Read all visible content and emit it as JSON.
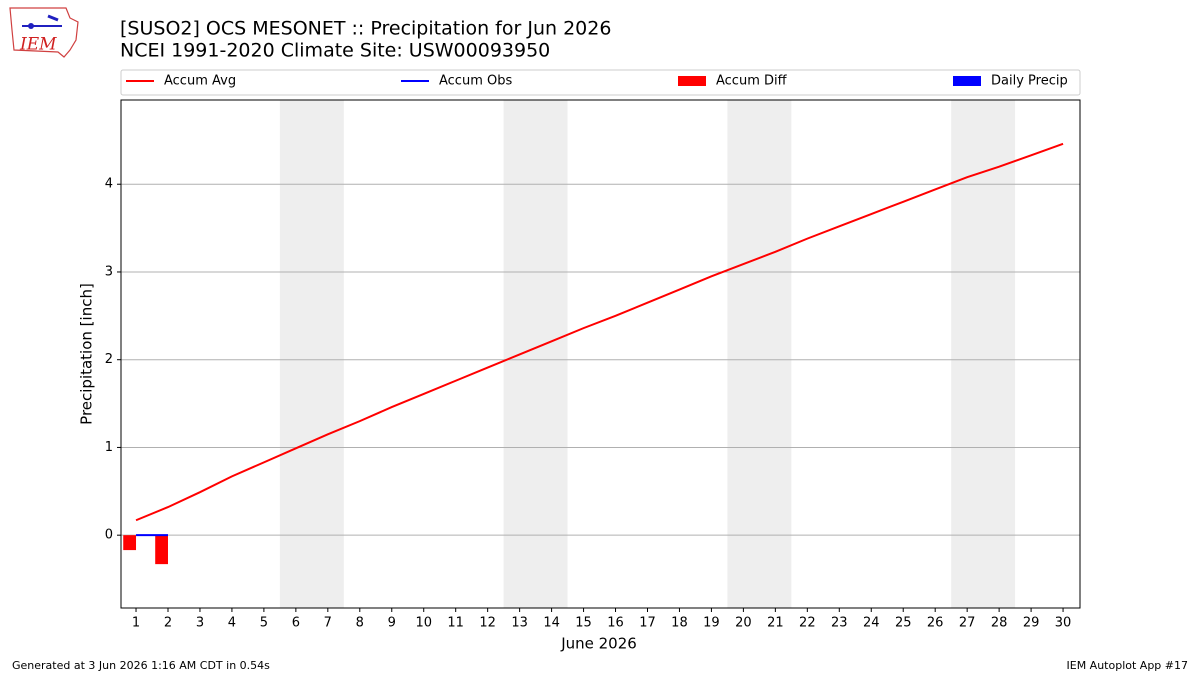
{
  "chart_data": {
    "type": "line",
    "title": "[SUSO2] OCS MESONET :: Precipitation for Jun 2026",
    "subtitle": "NCEI 1991-2020 Climate Site: USW00093950",
    "x_label": "June 2026",
    "y_label": "Precipitation [inch]",
    "logo_text": "IEM",
    "footer_left": "Generated at 3 Jun 2026 1:16 AM CDT in 0.54s",
    "footer_right": "IEM Autoplot App #17",
    "x": [
      1,
      2,
      3,
      4,
      5,
      6,
      7,
      8,
      9,
      10,
      11,
      12,
      13,
      14,
      15,
      16,
      17,
      18,
      19,
      20,
      21,
      22,
      23,
      24,
      25,
      26,
      27,
      28,
      29,
      30
    ],
    "xlim": [
      0.53,
      30.53
    ],
    "xticks": [
      1,
      2,
      3,
      4,
      5,
      6,
      7,
      8,
      9,
      10,
      11,
      12,
      13,
      14,
      15,
      16,
      17,
      18,
      19,
      20,
      21,
      22,
      23,
      24,
      25,
      26,
      27,
      28,
      29,
      30
    ],
    "ylim": [
      -0.83,
      4.96
    ],
    "yticks": [
      0,
      1,
      2,
      3,
      4
    ],
    "grid": true,
    "legend": "top",
    "shaded_spans": [
      [
        5.5,
        7.5
      ],
      [
        12.5,
        14.5
      ],
      [
        19.5,
        21.5
      ],
      [
        26.5,
        28.5
      ]
    ],
    "shade_color": "#eeeeee",
    "series": [
      {
        "name": "Accum Avg",
        "color": "#ff0000",
        "kind": "line",
        "values": [
          0.17,
          0.32,
          0.49,
          0.67,
          0.83,
          0.99,
          1.15,
          1.3,
          1.46,
          1.61,
          1.76,
          1.91,
          2.06,
          2.21,
          2.36,
          2.5,
          2.65,
          2.8,
          2.95,
          3.09,
          3.23,
          3.38,
          3.52,
          3.66,
          3.8,
          3.94,
          4.08,
          4.2,
          4.33,
          4.46
        ]
      },
      {
        "name": "Accum Obs",
        "color": "#0000ff",
        "kind": "line",
        "values": [
          0,
          0,
          null,
          null,
          null,
          null,
          null,
          null,
          null,
          null,
          null,
          null,
          null,
          null,
          null,
          null,
          null,
          null,
          null,
          null,
          null,
          null,
          null,
          null,
          null,
          null,
          null,
          null,
          null,
          null
        ]
      },
      {
        "name": "Accum Diff",
        "color": "#ff0000",
        "kind": "bar",
        "values": [
          -0.17,
          -0.33,
          null,
          null,
          null,
          null,
          null,
          null,
          null,
          null,
          null,
          null,
          null,
          null,
          null,
          null,
          null,
          null,
          null,
          null,
          null,
          null,
          null,
          null,
          null,
          null,
          null,
          null,
          null,
          null
        ]
      },
      {
        "name": "Daily Precip",
        "color": "#0000ff",
        "kind": "bar",
        "values": [
          0,
          0,
          null,
          null,
          null,
          null,
          null,
          null,
          null,
          null,
          null,
          null,
          null,
          null,
          null,
          null,
          null,
          null,
          null,
          null,
          null,
          null,
          null,
          null,
          null,
          null,
          null,
          null,
          null,
          null
        ]
      }
    ]
  }
}
